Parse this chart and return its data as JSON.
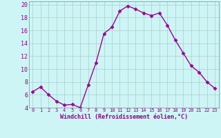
{
  "x": [
    0,
    1,
    2,
    3,
    4,
    5,
    6,
    7,
    8,
    9,
    10,
    11,
    12,
    13,
    14,
    15,
    16,
    17,
    18,
    19,
    20,
    21,
    22,
    23
  ],
  "y": [
    6.5,
    7.2,
    6.0,
    5.0,
    4.4,
    4.5,
    4.0,
    7.5,
    11.0,
    15.5,
    16.5,
    19.0,
    19.8,
    19.3,
    18.7,
    18.3,
    18.7,
    16.8,
    14.5,
    12.5,
    10.5,
    9.5,
    8.0,
    7.0
  ],
  "line_color": "#990099",
  "marker": "D",
  "markersize": 2.5,
  "linewidth": 1.0,
  "xlabel": "Windchill (Refroidissement éolien,°C)",
  "xlim": [
    -0.5,
    23.5
  ],
  "ylim": [
    4,
    20.5
  ],
  "yticks": [
    4,
    6,
    8,
    10,
    12,
    14,
    16,
    18,
    20
  ],
  "xticks": [
    0,
    1,
    2,
    3,
    4,
    5,
    6,
    7,
    8,
    9,
    10,
    11,
    12,
    13,
    14,
    15,
    16,
    17,
    18,
    19,
    20,
    21,
    22,
    23
  ],
  "bg_color": "#cef5f5",
  "grid_color": "#aacccc",
  "tick_color": "#880088",
  "label_color": "#880088"
}
